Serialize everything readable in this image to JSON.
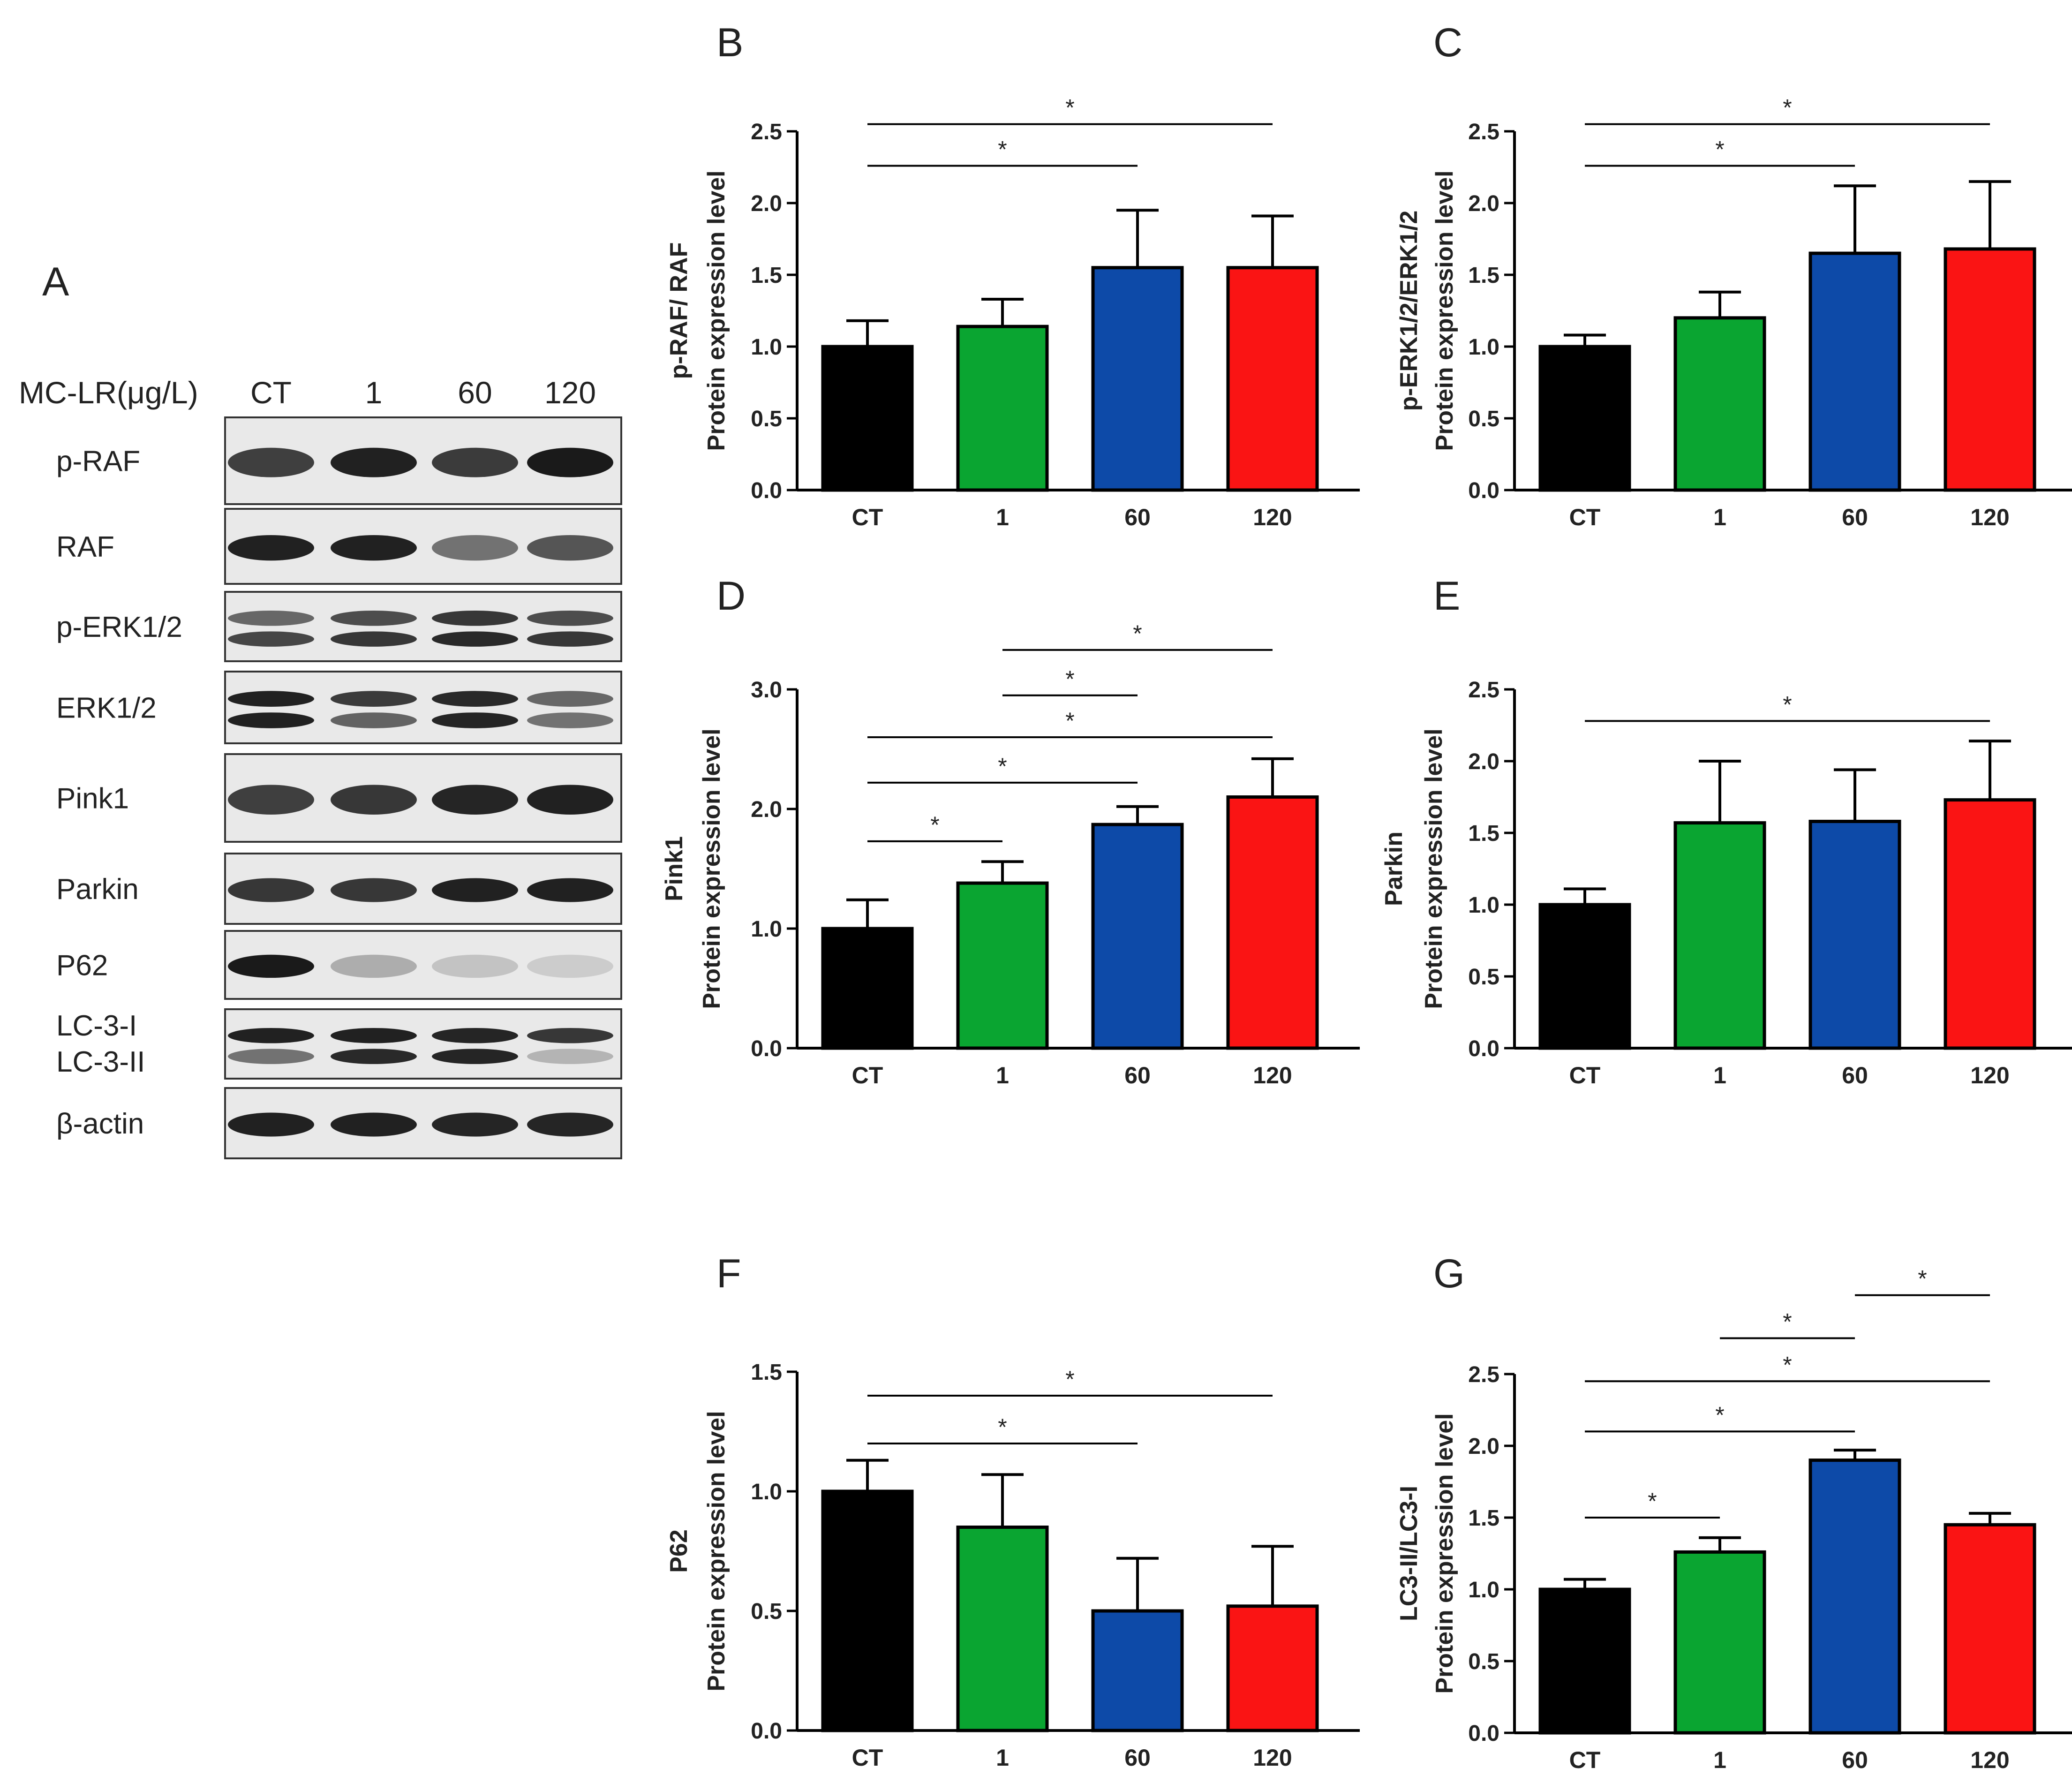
{
  "chart_data": [
    {
      "panel": "A",
      "type": "western-blot",
      "treatment_label": "MC-LR(μg/L)",
      "lanes": [
        "CT",
        "1",
        "60",
        "120"
      ],
      "blots": [
        {
          "label": "p-RAF",
          "bands": [
            [
              0.78,
              0.92,
              0.8,
              0.95
            ]
          ]
        },
        {
          "label": "RAF",
          "bands": [
            [
              0.92,
              0.92,
              0.55,
              0.68
            ]
          ]
        },
        {
          "label": "p-ERK1/2",
          "bands": [
            [
              0.6,
              0.72,
              0.82,
              0.72
            ],
            [
              0.75,
              0.82,
              0.88,
              0.82
            ]
          ]
        },
        {
          "label": "ERK1/2",
          "bands": [
            [
              0.92,
              0.8,
              0.88,
              0.6
            ],
            [
              0.92,
              0.62,
              0.9,
              0.55
            ]
          ]
        },
        {
          "label": "Pink1",
          "bands": [
            [
              0.78,
              0.82,
              0.9,
              0.92
            ]
          ]
        },
        {
          "label": "Parkin",
          "bands": [
            [
              0.82,
              0.82,
              0.92,
              0.92
            ]
          ]
        },
        {
          "label": "P62",
          "bands": [
            [
              0.95,
              0.28,
              0.18,
              0.14
            ]
          ]
        },
        {
          "label": "LC-3-I",
          "secondary_label": "LC-3-II",
          "bands": [
            [
              0.92,
              0.92,
              0.9,
              0.82
            ],
            [
              0.55,
              0.88,
              0.9,
              0.25
            ]
          ]
        },
        {
          "label": "β-actin",
          "bands": [
            [
              0.92,
              0.92,
              0.9,
              0.9
            ]
          ]
        }
      ]
    },
    {
      "panel": "B",
      "type": "bar",
      "categories": [
        "CT",
        "1",
        "60",
        "120"
      ],
      "values": [
        1.0,
        1.14,
        1.55,
        1.55
      ],
      "errors": [
        0.18,
        0.19,
        0.4,
        0.36
      ],
      "ylabel": [
        "p-RAF/ RAF",
        "Protein expression level"
      ],
      "ylim": [
        0,
        2.5
      ],
      "yticks": [
        "0.0",
        "0.5",
        "1.0",
        "1.5",
        "2.0",
        "2.5"
      ],
      "significance": [
        {
          "from": 0,
          "to": 3,
          "y": 2.55,
          "label": "*"
        },
        {
          "from": 0,
          "to": 2,
          "y": 2.26,
          "label": "*"
        }
      ]
    },
    {
      "panel": "C",
      "type": "bar",
      "categories": [
        "CT",
        "1",
        "60",
        "120"
      ],
      "values": [
        1.0,
        1.2,
        1.65,
        1.68
      ],
      "errors": [
        0.08,
        0.18,
        0.47,
        0.47
      ],
      "ylabel": [
        "p-ERK1/2/ERK1/2",
        "Protein expression level"
      ],
      "ylim": [
        0,
        2.5
      ],
      "yticks": [
        "0.0",
        "0.5",
        "1.0",
        "1.5",
        "2.0",
        "2.5"
      ],
      "significance": [
        {
          "from": 0,
          "to": 3,
          "y": 2.55,
          "label": "*"
        },
        {
          "from": 0,
          "to": 2,
          "y": 2.26,
          "label": "*"
        }
      ]
    },
    {
      "panel": "D",
      "type": "bar",
      "categories": [
        "CT",
        "1",
        "60",
        "120"
      ],
      "values": [
        1.0,
        1.38,
        1.87,
        2.1
      ],
      "errors": [
        0.24,
        0.18,
        0.15,
        0.32
      ],
      "ylabel": [
        "Pink1",
        "Protein expression level"
      ],
      "ylim": [
        0,
        3.0
      ],
      "yticks": [
        "0.0",
        "1.0",
        "2.0",
        "3.0"
      ],
      "significance": [
        {
          "from": 1,
          "to": 3,
          "y": 3.33,
          "label": "*"
        },
        {
          "from": 1,
          "to": 2,
          "y": 2.95,
          "label": "*"
        },
        {
          "from": 0,
          "to": 3,
          "y": 2.6,
          "label": "*"
        },
        {
          "from": 0,
          "to": 2,
          "y": 2.22,
          "label": "*"
        },
        {
          "from": 0,
          "to": 1,
          "y": 1.73,
          "label": "*"
        }
      ]
    },
    {
      "panel": "E",
      "type": "bar",
      "categories": [
        "CT",
        "1",
        "60",
        "120"
      ],
      "values": [
        1.0,
        1.57,
        1.58,
        1.73
      ],
      "errors": [
        0.11,
        0.43,
        0.36,
        0.41
      ],
      "ylabel": [
        "Parkin",
        "Protein expression level"
      ],
      "ylim": [
        0,
        2.5
      ],
      "yticks": [
        "0.0",
        "0.5",
        "1.0",
        "1.5",
        "2.0",
        "2.5"
      ],
      "significance": [
        {
          "from": 0,
          "to": 3,
          "y": 2.28,
          "label": "*"
        }
      ]
    },
    {
      "panel": "F",
      "type": "bar",
      "categories": [
        "CT",
        "1",
        "60",
        "120"
      ],
      "values": [
        1.0,
        0.85,
        0.5,
        0.52
      ],
      "errors": [
        0.13,
        0.22,
        0.22,
        0.25
      ],
      "ylabel": [
        "P62",
        "Protein expression level"
      ],
      "ylim": [
        0,
        1.5
      ],
      "yticks": [
        "0.0",
        "0.5",
        "1.0",
        "1.5"
      ],
      "significance": [
        {
          "from": 0,
          "to": 3,
          "y": 1.4,
          "label": "*"
        },
        {
          "from": 0,
          "to": 2,
          "y": 1.2,
          "label": "*"
        }
      ]
    },
    {
      "panel": "G",
      "type": "bar",
      "categories": [
        "CT",
        "1",
        "60",
        "120"
      ],
      "values": [
        1.0,
        1.26,
        1.9,
        1.45
      ],
      "errors": [
        0.07,
        0.1,
        0.07,
        0.08
      ],
      "ylabel": [
        "LC3-II/LC3-I",
        "Protein expression level"
      ],
      "ylim": [
        0,
        2.5
      ],
      "yticks": [
        "0.0",
        "0.5",
        "1.0",
        "1.5",
        "2.0",
        "2.5"
      ],
      "significance": [
        {
          "from": 2,
          "to": 3,
          "y": 3.05,
          "label": "*"
        },
        {
          "from": 1,
          "to": 2,
          "y": 2.75,
          "label": "*"
        },
        {
          "from": 0,
          "to": 3,
          "y": 2.45,
          "label": "*"
        },
        {
          "from": 0,
          "to": 2,
          "y": 2.1,
          "label": "*"
        },
        {
          "from": 0,
          "to": 1,
          "y": 1.5,
          "label": "*"
        }
      ]
    }
  ],
  "colors": {
    "CT": "#000000",
    "1": "#0aa531",
    "60": "#0d4aa8",
    "120": "#fa1414",
    "text": "#222222"
  }
}
